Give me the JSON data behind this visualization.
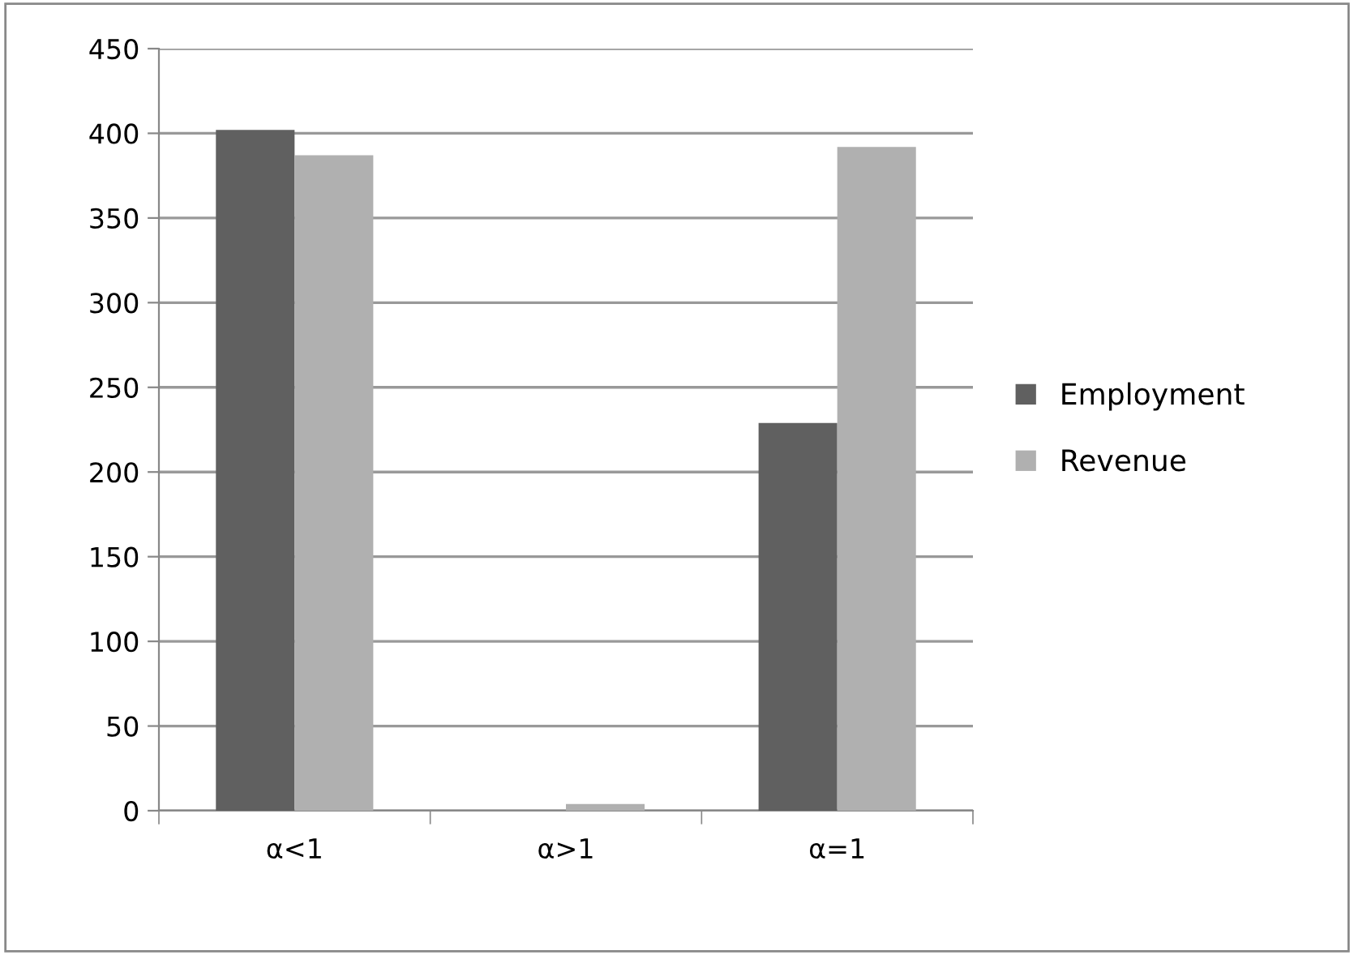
{
  "chart_data": {
    "type": "bar",
    "categories": [
      "α<1",
      "α>1",
      "α=1"
    ],
    "series": [
      {
        "name": "Employment",
        "color": "#606060",
        "values": [
          402,
          0,
          229
        ]
      },
      {
        "name": "Revenue",
        "color": "#b0b0b0",
        "values": [
          387,
          4,
          392
        ]
      }
    ],
    "ylim": [
      0,
      450
    ],
    "yticks": [
      0,
      50,
      100,
      150,
      200,
      250,
      300,
      350,
      400,
      450
    ],
    "grid": "y",
    "legend": "right"
  }
}
